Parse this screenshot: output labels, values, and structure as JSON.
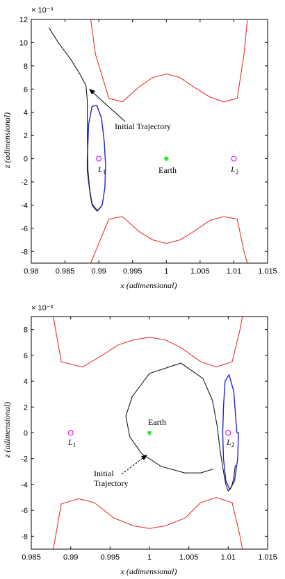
{
  "chart_data": [
    {
      "type": "line",
      "xlabel": "x (adimensional)",
      "ylabel": "z (adimensional)",
      "exponent_label": "× 10⁻³",
      "xlim": [
        0.98,
        1.015
      ],
      "ylim": [
        -9,
        12
      ],
      "xticks": [
        0.98,
        0.985,
        0.99,
        0.995,
        1,
        1.005,
        1.01,
        1.015
      ],
      "xtick_labels": [
        "0.98",
        "0.985",
        "0.99",
        "0.995",
        "1",
        "1.005",
        "1.01",
        "1.015"
      ],
      "yticks": [
        -8,
        -6,
        -4,
        -2,
        0,
        2,
        4,
        6,
        8,
        10,
        12
      ],
      "ytick_labels": [
        "-8",
        "-6",
        "-4",
        "-2",
        "0",
        "2",
        "4",
        "6",
        "8",
        "10",
        "12"
      ],
      "colors": {
        "boundary": "#e8312f",
        "orbit": "#2323d6",
        "trajectory": "#1a1a1a",
        "earth": "#22dd22",
        "libration": "#e020e0"
      },
      "series": [
        {
          "role": "boundary",
          "x": [
            0.9888,
            0.9895,
            0.9915,
            0.9935,
            0.996,
            0.998,
            1,
            1.002,
            1.004,
            1.0065,
            1.0085,
            1.0105,
            1.0115,
            1.012
          ],
          "y": [
            12,
            9,
            5.2,
            4.9,
            6.2,
            7,
            7.3,
            7,
            6.2,
            5.3,
            4.9,
            5.2,
            9,
            12
          ]
        },
        {
          "role": "boundary",
          "x": [
            0.9888,
            0.9895,
            0.9915,
            0.9935,
            0.996,
            0.998,
            1,
            1.002,
            1.004,
            1.0065,
            1.0085,
            1.0105,
            1.0115,
            1.012
          ],
          "y": [
            -9,
            -8,
            -5.2,
            -5,
            -6.3,
            -7,
            -7.3,
            -7,
            -6.3,
            -5.3,
            -5,
            -5.2,
            -8,
            -9
          ]
        },
        {
          "role": "orbit",
          "x": [
            0.9883,
            0.9885,
            0.989,
            0.9897,
            0.9904,
            0.9908,
            0.991,
            0.9909,
            0.9905,
            0.9898,
            0.989,
            0.9886,
            0.9883,
            0.9883
          ],
          "y": [
            0,
            3,
            4.5,
            4.6,
            3.5,
            1.5,
            -0.5,
            -2.5,
            -4,
            -4.5,
            -3.9,
            -2.5,
            -1,
            0
          ]
        },
        {
          "role": "trajectory",
          "x": [
            0.9826,
            0.984,
            0.9858,
            0.9872,
            0.9881,
            0.9883,
            0.9883,
            0.9884,
            0.9887,
            0.989,
            0.9897,
            0.9903
          ],
          "y": [
            11.3,
            10,
            8.6,
            7.3,
            6.3,
            5,
            2,
            -1,
            -3,
            -4,
            -4.5,
            -4.2
          ]
        }
      ],
      "points": [
        {
          "name": "L1",
          "x": 0.99,
          "y": 0,
          "marker": "circle"
        },
        {
          "name": "Earth",
          "x": 1,
          "y": 0,
          "marker": "star"
        },
        {
          "name": "L2",
          "x": 1.01,
          "y": 0,
          "marker": "circle"
        }
      ],
      "annotations": {
        "trajectory_label": "Initial Trajectory",
        "earth_label": "Earth",
        "l1_label": "L",
        "l1_sub": "1",
        "l2_label": "L",
        "l2_sub": "2"
      }
    },
    {
      "type": "line",
      "xlabel": "x (adimensional)",
      "ylabel": "z (adimensional)",
      "exponent_label": "× 10⁻³",
      "xlim": [
        0.985,
        1.015
      ],
      "ylim": [
        -9,
        9
      ],
      "xticks": [
        0.985,
        0.99,
        0.995,
        1,
        1.005,
        1.01,
        1.015
      ],
      "xtick_labels": [
        "0.985",
        "0.99",
        "0.995",
        "1",
        "1.005",
        "1.01",
        "1.015"
      ],
      "yticks": [
        -8,
        -6,
        -4,
        -2,
        0,
        2,
        4,
        6,
        8
      ],
      "ytick_labels": [
        "-8",
        "-6",
        "-4",
        "-2",
        "0",
        "2",
        "4",
        "6",
        "8"
      ],
      "colors": {
        "boundary": "#e8312f",
        "orbit": "#2323d6",
        "trajectory": "#1a1a1a",
        "earth": "#22dd22",
        "libration": "#e020e0"
      },
      "series": [
        {
          "role": "boundary",
          "x": [
            0.9878,
            0.9888,
            0.9915,
            0.994,
            0.996,
            0.998,
            1,
            1.002,
            1.004,
            1.0065,
            1.0085,
            1.0105,
            1.0115,
            1.0118
          ],
          "y": [
            9,
            5.5,
            5.1,
            6,
            6.8,
            7.2,
            7.4,
            7.2,
            6.6,
            5.5,
            5.1,
            5.5,
            8,
            9
          ]
        },
        {
          "role": "boundary",
          "x": [
            0.9878,
            0.9888,
            0.991,
            0.993,
            0.9955,
            0.998,
            1,
            1.002,
            1.0045,
            1.0065,
            1.0085,
            1.0105,
            1.0115,
            1.0118
          ],
          "y": [
            -9,
            -5.5,
            -5.1,
            -5.4,
            -6.6,
            -7.2,
            -7.4,
            -7.2,
            -6.6,
            -5.4,
            -5,
            -5.4,
            -8,
            -9
          ]
        },
        {
          "role": "orbit",
          "x": [
            1.0111,
            1.0107,
            1.0101,
            1.0096,
            1.0094,
            1.0093,
            1.0094,
            1.0097,
            1.0102,
            1.0108,
            1.0112,
            1.0113,
            1.0111
          ],
          "y": [
            0,
            3.2,
            4.5,
            4,
            2,
            0,
            -2,
            -3.7,
            -4.4,
            -3.7,
            -2,
            0,
            0
          ]
        },
        {
          "role": "trajectory",
          "x": [
            1.0081,
            1.0065,
            1.0045,
            1.0015,
            0.999,
            0.9975,
            0.997,
            0.9978,
            1,
            1.004,
            1.0068,
            1.008,
            1.0086,
            1.009,
            1.0094,
            1.0097,
            1.01,
            1.0104,
            1.0107,
            1.0109
          ],
          "y": [
            -2.8,
            -3.1,
            -3.1,
            -2.6,
            -1.6,
            -0.3,
            1.3,
            2.8,
            4.6,
            5.4,
            4.2,
            2.5,
            0.5,
            -1.5,
            -3,
            -4,
            -4.5,
            -4.2,
            -3.5,
            -2.5
          ]
        }
      ],
      "points": [
        {
          "name": "L1",
          "x": 0.99,
          "y": 0,
          "marker": "circle"
        },
        {
          "name": "Earth",
          "x": 1,
          "y": 0,
          "marker": "star"
        },
        {
          "name": "L2",
          "x": 1.01,
          "y": 0,
          "marker": "circle"
        }
      ],
      "annotations": {
        "trajectory_label_1": "Initial",
        "trajectory_label_2": "Trajectory",
        "earth_label": "Earth",
        "l1_label": "L",
        "l1_sub": "1",
        "l2_label": "L",
        "l2_sub": "2"
      }
    }
  ]
}
